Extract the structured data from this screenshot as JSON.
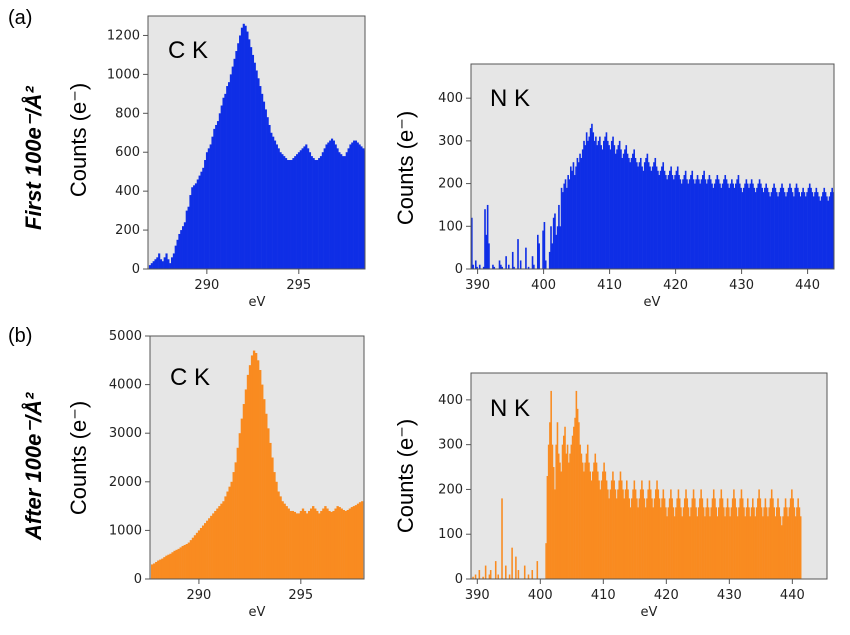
{
  "figure": {
    "panels": [
      {
        "letter": "(a)",
        "row_label": "First 100e⁻/Å²"
      },
      {
        "letter": "(b)",
        "row_label": "After 100e⁻/Å²"
      }
    ]
  },
  "chart_data": [
    {
      "id": "a-ck",
      "type": "bar",
      "annotation": "C K",
      "xlabel": "eV",
      "ylabel": "Counts (e⁻)",
      "color": "#0f2ee6",
      "xlim": [
        286.8,
        298.6
      ],
      "ylim": [
        0,
        1300
      ],
      "xticks": [
        290,
        295
      ],
      "yticks": [
        0,
        200,
        400,
        600,
        800,
        1000,
        1200
      ],
      "x_start": 286.9,
      "x_step": 0.1,
      "values": [
        20,
        30,
        40,
        50,
        60,
        80,
        50,
        40,
        60,
        80,
        50,
        30,
        60,
        80,
        120,
        150,
        180,
        200,
        220,
        240,
        300,
        320,
        380,
        420,
        430,
        440,
        460,
        480,
        500,
        520,
        560,
        600,
        620,
        640,
        680,
        720,
        740,
        760,
        800,
        840,
        880,
        900,
        940,
        960,
        1000,
        1040,
        1080,
        1120,
        1160,
        1200,
        1240,
        1260,
        1250,
        1220,
        1180,
        1140,
        1100,
        1060,
        1020,
        980,
        940,
        900,
        860,
        820,
        780,
        740,
        700,
        680,
        660,
        640,
        620,
        600,
        590,
        580,
        570,
        560,
        560,
        560,
        570,
        580,
        590,
        600,
        610,
        620,
        630,
        640,
        620,
        600,
        580,
        570,
        560,
        560,
        570,
        580,
        600,
        620,
        640,
        650,
        660,
        670,
        660,
        640,
        620,
        600,
        590,
        580,
        580,
        600,
        620,
        640,
        650,
        660,
        660,
        650,
        640,
        630,
        620,
        610
      ]
    },
    {
      "id": "a-nk",
      "type": "bar",
      "annotation": "N K",
      "xlabel": "eV",
      "ylabel": "Counts (e⁻)",
      "color": "#0f2ee6",
      "xlim": [
        389,
        444
      ],
      "ylim": [
        0,
        480
      ],
      "xticks": [
        390,
        400,
        410,
        420,
        430,
        440
      ],
      "yticks": [
        0,
        100,
        200,
        300,
        400
      ],
      "x_start": 389.1,
      "x_step": 0.2,
      "values": [
        120,
        10,
        0,
        20,
        5,
        0,
        10,
        0,
        0,
        5,
        140,
        80,
        150,
        60,
        0,
        0,
        10,
        5,
        0,
        0,
        0,
        20,
        10,
        5,
        0,
        0,
        30,
        0,
        10,
        0,
        0,
        40,
        5,
        0,
        0,
        70,
        0,
        20,
        0,
        0,
        0,
        50,
        0,
        5,
        0,
        0,
        30,
        10,
        0,
        0,
        80,
        60,
        0,
        0,
        90,
        110,
        20,
        0,
        0,
        40,
        100,
        60,
        120,
        130,
        80,
        100,
        150,
        100,
        190,
        180,
        200,
        210,
        190,
        220,
        210,
        240,
        230,
        250,
        220,
        240,
        260,
        250,
        270,
        260,
        280,
        300,
        290,
        320,
        300,
        310,
        330,
        340,
        320,
        300,
        310,
        290,
        300,
        310,
        290,
        280,
        300,
        310,
        320,
        300,
        290,
        280,
        300,
        310,
        290,
        270,
        280,
        290,
        300,
        280,
        260,
        270,
        280,
        290,
        270,
        260,
        250,
        260,
        270,
        280,
        260,
        250,
        240,
        250,
        260,
        240,
        230,
        250,
        260,
        270,
        250,
        240,
        230,
        240,
        250,
        260,
        240,
        230,
        220,
        230,
        240,
        250,
        230,
        220,
        210,
        220,
        230,
        240,
        220,
        210,
        220,
        230,
        240,
        220,
        210,
        200,
        210,
        220,
        230,
        210,
        200,
        210,
        220,
        230,
        210,
        200,
        210,
        220,
        210,
        200,
        210,
        220,
        230,
        210,
        200,
        210,
        220,
        210,
        200,
        190,
        200,
        210,
        220,
        210,
        200,
        190,
        200,
        210,
        220,
        210,
        200,
        190,
        200,
        210,
        200,
        190,
        200,
        210,
        220,
        200,
        190,
        180,
        190,
        200,
        210,
        200,
        190,
        200,
        210,
        200,
        190,
        180,
        190,
        200,
        210,
        200,
        190,
        180,
        190,
        200,
        190,
        180,
        170,
        180,
        190,
        200,
        190,
        180,
        170,
        180,
        190,
        200,
        190,
        180,
        170,
        180,
        190,
        200,
        190,
        180,
        170,
        190,
        200,
        190,
        180,
        170,
        180,
        190,
        180,
        170,
        180,
        190,
        200,
        190,
        180,
        170,
        180,
        190,
        180,
        170,
        160,
        170,
        180,
        190,
        180,
        170,
        160,
        170,
        180,
        190,
        180,
        170,
        160,
        170,
        180,
        170,
        160
      ]
    },
    {
      "id": "b-ck",
      "type": "bar",
      "annotation": "C K",
      "xlabel": "eV",
      "ylabel": "Counts (e⁻)",
      "color": "#f98b20",
      "xlim": [
        287.6,
        298.1
      ],
      "ylim": [
        0,
        5000
      ],
      "xticks": [
        290,
        295
      ],
      "yticks": [
        0,
        1000,
        2000,
        3000,
        4000,
        5000
      ],
      "x_start": 287.7,
      "x_step": 0.1,
      "values": [
        300,
        320,
        350,
        380,
        400,
        420,
        450,
        480,
        500,
        520,
        550,
        580,
        600,
        620,
        650,
        680,
        700,
        720,
        750,
        800,
        850,
        900,
        950,
        1000,
        1050,
        1100,
        1150,
        1200,
        1250,
        1300,
        1350,
        1400,
        1450,
        1500,
        1550,
        1600,
        1700,
        1800,
        1900,
        2000,
        2200,
        2400,
        2700,
        3000,
        3300,
        3600,
        3900,
        4200,
        4400,
        4600,
        4700,
        4650,
        4500,
        4300,
        4000,
        3700,
        3400,
        3100,
        2800,
        2500,
        2200,
        2000,
        1800,
        1700,
        1600,
        1550,
        1500,
        1450,
        1400,
        1400,
        1380,
        1350,
        1350,
        1400,
        1450,
        1400,
        1350,
        1400,
        1450,
        1500,
        1450,
        1400,
        1350,
        1400,
        1450,
        1500,
        1450,
        1400,
        1380,
        1400,
        1450,
        1500,
        1480,
        1450,
        1420,
        1400,
        1420,
        1450,
        1480,
        1500,
        1520,
        1550,
        1580,
        1600
      ]
    },
    {
      "id": "b-nk",
      "type": "bar",
      "annotation": "N K",
      "xlabel": "eV",
      "ylabel": "Counts (e⁻)",
      "color": "#f98b20",
      "xlim": [
        389,
        445.5
      ],
      "ylim": [
        0,
        460
      ],
      "xticks": [
        390,
        400,
        410,
        420,
        430,
        440
      ],
      "yticks": [
        0,
        100,
        200,
        300,
        400
      ],
      "x_start": 389.1,
      "x_step": 0.2,
      "values": [
        0,
        5,
        0,
        10,
        0,
        0,
        20,
        0,
        0,
        5,
        0,
        30,
        0,
        0,
        10,
        20,
        0,
        0,
        0,
        40,
        0,
        10,
        0,
        0,
        180,
        0,
        0,
        30,
        0,
        0,
        10,
        0,
        70,
        0,
        0,
        50,
        0,
        20,
        0,
        0,
        0,
        0,
        30,
        0,
        0,
        10,
        0,
        0,
        20,
        0,
        0,
        0,
        40,
        0,
        0,
        0,
        0,
        0,
        0,
        80,
        230,
        300,
        350,
        420,
        300,
        250,
        200,
        300,
        350,
        280,
        260,
        240,
        300,
        320,
        340,
        280,
        300,
        260,
        280,
        300,
        320,
        340,
        360,
        420,
        380,
        350,
        300,
        280,
        260,
        240,
        260,
        280,
        300,
        260,
        240,
        220,
        240,
        260,
        280,
        260,
        240,
        220,
        200,
        220,
        240,
        260,
        240,
        220,
        200,
        180,
        200,
        220,
        240,
        220,
        200,
        180,
        200,
        220,
        240,
        220,
        200,
        180,
        200,
        220,
        200,
        180,
        160,
        180,
        200,
        220,
        200,
        180,
        160,
        180,
        200,
        220,
        200,
        180,
        160,
        180,
        200,
        220,
        200,
        180,
        160,
        180,
        200,
        220,
        200,
        180,
        160,
        180,
        200,
        180,
        160,
        140,
        160,
        180,
        200,
        180,
        160,
        140,
        160,
        180,
        200,
        180,
        160,
        140,
        160,
        180,
        200,
        180,
        160,
        140,
        160,
        180,
        200,
        180,
        160,
        140,
        160,
        180,
        200,
        180,
        160,
        140,
        160,
        180,
        160,
        140,
        160,
        180,
        200,
        180,
        160,
        140,
        160,
        180,
        200,
        180,
        160,
        140,
        160,
        180,
        160,
        140,
        160,
        180,
        200,
        180,
        160,
        140,
        160,
        180,
        200,
        180,
        160,
        140,
        160,
        180,
        160,
        140,
        160,
        180,
        160,
        140,
        160,
        180,
        200,
        180,
        160,
        140,
        160,
        180,
        160,
        140,
        160,
        180,
        200,
        180,
        160,
        140,
        160,
        180,
        160,
        140,
        120,
        140,
        160,
        180,
        160,
        140,
        160,
        180,
        200,
        180,
        160,
        140,
        160,
        180,
        160,
        140
      ]
    }
  ]
}
